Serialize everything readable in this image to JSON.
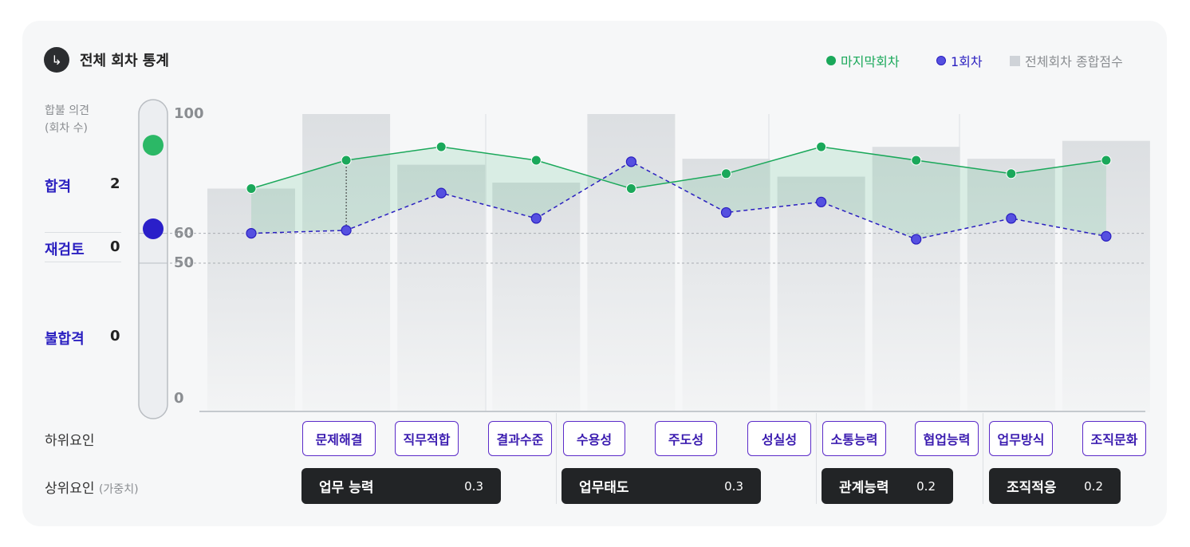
{
  "header": {
    "title": "전체 회차 통계",
    "icon": "arrow-turn-right-icon"
  },
  "legend": [
    {
      "label": "마지막회차",
      "color": "#1aa85a"
    },
    {
      "label": "1회차",
      "color": "#2a1fc0"
    },
    {
      "label": "전체회차 종합점수",
      "color": "#cfd3d8"
    }
  ],
  "side": {
    "heading1": "합불 의견",
    "heading2": "(회차 수)",
    "rows": [
      {
        "label": "합격",
        "count": "2"
      },
      {
        "label": "재검토",
        "count": "0"
      },
      {
        "label": "불합격",
        "count": "0"
      }
    ]
  },
  "gauge": {
    "last_round": 85,
    "first_round": 61.5
  },
  "row_labels": {
    "sub": "하위요인",
    "upper": "상위요인",
    "upper_note": "(가중치)"
  },
  "groups": [
    {
      "name": "업무 능력",
      "weight": "0.3"
    },
    {
      "name": "업무태도",
      "weight": "0.3"
    },
    {
      "name": "관계능력",
      "weight": "0.2"
    },
    {
      "name": "조직적응",
      "weight": "0.2"
    }
  ],
  "chart_data": {
    "type": "bar+line",
    "categories": [
      "문제해결",
      "직무적합",
      "결과수준",
      "수용성",
      "주도성",
      "성실성",
      "소통능력",
      "협업능력",
      "업무방식",
      "조직문화"
    ],
    "ylim": [
      0,
      100
    ],
    "yticks": [
      "0",
      "50",
      "60",
      "100"
    ],
    "reference_lines": [
      50,
      60
    ],
    "series": [
      {
        "name": "전체회차 종합점수",
        "type": "bar",
        "values": [
          75,
          100,
          83,
          77,
          100,
          85,
          79,
          89,
          85,
          91
        ]
      },
      {
        "name": "마지막회차",
        "type": "line",
        "values": [
          75,
          84.5,
          89,
          84.5,
          75,
          80,
          89,
          84.5,
          80,
          84.5
        ]
      },
      {
        "name": "1회차",
        "type": "line",
        "dashed": true,
        "values": [
          60,
          61,
          73.5,
          65,
          84,
          67,
          70.5,
          58,
          65,
          59
        ]
      }
    ]
  }
}
